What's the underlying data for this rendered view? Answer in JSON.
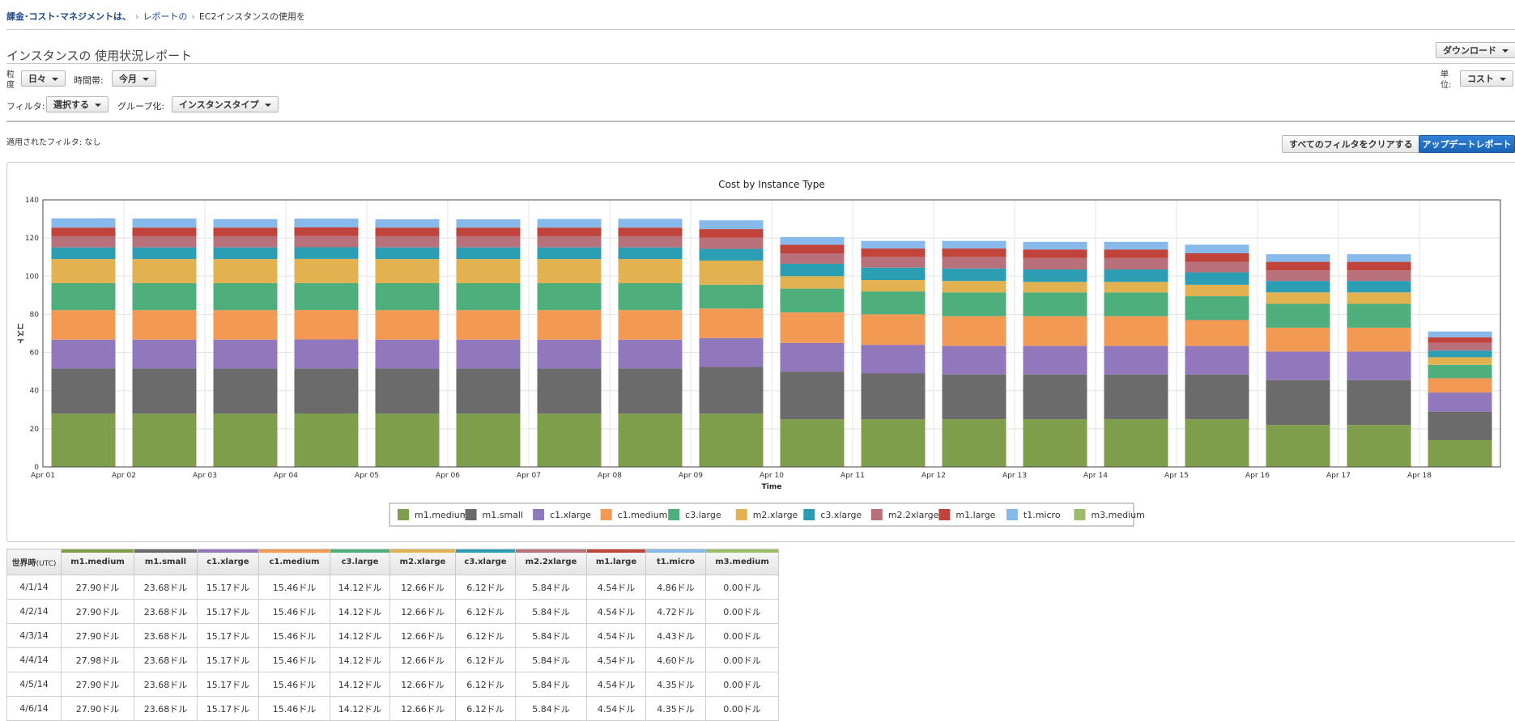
{
  "breadcrumb": {
    "root": "課金･コスト･マネジメントは、",
    "link": "レポートの",
    "current": "EC2インスタンスの使用を"
  },
  "page_title": "インスタンスの 使用状況レポート",
  "download_label": "ダウンロード",
  "filters": {
    "granularity_label": "粒度",
    "granularity_value": "日々",
    "period_label": "時間帯:",
    "period_value": "今月",
    "unit_label": "単位:",
    "unit_value": "コスト",
    "filter_label": "フィルタ:",
    "filter_value": "選択する",
    "group_label": "グループ化:",
    "group_value": "インスタンスタイプ",
    "applied": "適用されたフィルタ: なし"
  },
  "clear_filters_label": "すべてのフィルタをクリアする",
  "update_report_label": "アップデートレポート",
  "colors": {
    "m1.medium": "#7f9e4c",
    "m1.small": "#6b6b6b",
    "c1.xlarge": "#9178bd",
    "c1.medium": "#f29a54",
    "c3.large": "#4faf7c",
    "m2.xlarge": "#e2b250",
    "c3.xlarge": "#2b9eb3",
    "m2.2xlarge": "#b8707a",
    "m1.large": "#c0443b",
    "t1.micro": "#87b9ea",
    "m3.medium": "#9bbd6b"
  },
  "chart_data": {
    "type": "bar",
    "stacked": true,
    "title": "Cost by Instance Type",
    "xlabel": "Time",
    "ylabel": "コスト",
    "ylim": [
      0,
      140
    ],
    "yticks": [
      0,
      20,
      40,
      60,
      80,
      100,
      120,
      140
    ],
    "grid": true,
    "legend_position": "bottom",
    "categories": [
      "Apr 01",
      "Apr 02",
      "Apr 03",
      "Apr 04",
      "Apr 05",
      "Apr 06",
      "Apr 07",
      "Apr 08",
      "Apr 09",
      "Apr 10",
      "Apr 11",
      "Apr 12",
      "Apr 13",
      "Apr 14",
      "Apr 15",
      "Apr 16",
      "Apr 17",
      "Apr 18"
    ],
    "series": [
      {
        "name": "m1.medium",
        "values": [
          27.9,
          27.9,
          27.9,
          27.98,
          27.9,
          27.9,
          27.9,
          27.9,
          27.9,
          25.0,
          25.0,
          25.0,
          25.0,
          25.0,
          25.0,
          22.0,
          22.0,
          14.0
        ]
      },
      {
        "name": "m1.small",
        "values": [
          23.68,
          23.68,
          23.68,
          23.68,
          23.68,
          23.68,
          23.68,
          23.68,
          24.5,
          25.0,
          24.0,
          23.5,
          23.5,
          23.5,
          23.5,
          23.5,
          23.5,
          15.0
        ]
      },
      {
        "name": "c1.xlarge",
        "values": [
          15.17,
          15.17,
          15.17,
          15.17,
          15.17,
          15.17,
          15.17,
          15.17,
          15.17,
          15.0,
          15.0,
          15.0,
          15.0,
          15.0,
          15.0,
          15.0,
          15.0,
          10.0
        ]
      },
      {
        "name": "c1.medium",
        "values": [
          15.46,
          15.46,
          15.46,
          15.46,
          15.46,
          15.46,
          15.46,
          15.46,
          15.46,
          16.0,
          16.0,
          15.5,
          15.5,
          15.5,
          13.5,
          12.5,
          12.5,
          7.5
        ]
      },
      {
        "name": "c3.large",
        "values": [
          14.12,
          14.12,
          14.12,
          14.12,
          14.12,
          14.12,
          14.12,
          14.12,
          12.5,
          12.5,
          12.0,
          12.5,
          12.5,
          12.5,
          12.5,
          12.5,
          12.5,
          7.0
        ]
      },
      {
        "name": "m2.xlarge",
        "values": [
          12.66,
          12.66,
          12.66,
          12.66,
          12.66,
          12.66,
          12.66,
          12.66,
          12.66,
          6.5,
          6.0,
          6.0,
          5.5,
          5.5,
          6.0,
          6.0,
          6.0,
          4.0
        ]
      },
      {
        "name": "c3.xlarge",
        "values": [
          6.12,
          6.12,
          6.12,
          6.12,
          6.12,
          6.12,
          6.12,
          6.12,
          6.12,
          6.5,
          6.5,
          6.5,
          6.5,
          6.5,
          6.5,
          6.0,
          6.0,
          3.5
        ]
      },
      {
        "name": "m2.2xlarge",
        "values": [
          5.84,
          5.84,
          5.84,
          5.84,
          5.84,
          5.84,
          5.84,
          5.84,
          5.84,
          5.5,
          5.5,
          6.0,
          6.0,
          6.0,
          5.5,
          5.5,
          5.5,
          4.0
        ]
      },
      {
        "name": "m1.large",
        "values": [
          4.54,
          4.54,
          4.54,
          4.54,
          4.54,
          4.54,
          4.54,
          4.54,
          4.54,
          4.5,
          4.5,
          4.5,
          4.5,
          4.5,
          4.5,
          4.5,
          4.5,
          3.0
        ]
      },
      {
        "name": "t1.micro",
        "values": [
          4.86,
          4.72,
          4.43,
          4.6,
          4.35,
          4.35,
          4.5,
          4.6,
          4.6,
          4.0,
          4.0,
          4.0,
          4.0,
          4.0,
          4.5,
          4.0,
          4.0,
          3.0
        ]
      },
      {
        "name": "m3.medium",
        "values": [
          0,
          0,
          0,
          0,
          0,
          0,
          0,
          0,
          0,
          0,
          0,
          0,
          0,
          0,
          0,
          0,
          0,
          0
        ]
      }
    ]
  },
  "table": {
    "date_header": "世界時",
    "date_header_sub": "(UTC)",
    "columns": [
      "m1.medium",
      "m1.small",
      "c1.xlarge",
      "c1.medium",
      "c3.large",
      "m2.xlarge",
      "c3.xlarge",
      "m2.2xlarge",
      "m1.large",
      "t1.micro",
      "m3.medium"
    ],
    "rows": [
      {
        "date": "4/1/14",
        "values": [
          "27.90ドル",
          "23.68ドル",
          "15.17ドル",
          "15.46ドル",
          "14.12ドル",
          "12.66ドル",
          "6.12ドル",
          "5.84ドル",
          "4.54ドル",
          "4.86ドル",
          "0.00ドル"
        ]
      },
      {
        "date": "4/2/14",
        "values": [
          "27.90ドル",
          "23.68ドル",
          "15.17ドル",
          "15.46ドル",
          "14.12ドル",
          "12.66ドル",
          "6.12ドル",
          "5.84ドル",
          "4.54ドル",
          "4.72ドル",
          "0.00ドル"
        ]
      },
      {
        "date": "4/3/14",
        "values": [
          "27.90ドル",
          "23.68ドル",
          "15.17ドル",
          "15.46ドル",
          "14.12ドル",
          "12.66ドル",
          "6.12ドル",
          "5.84ドル",
          "4.54ドル",
          "4.43ドル",
          "0.00ドル"
        ]
      },
      {
        "date": "4/4/14",
        "values": [
          "27.98ドル",
          "23.68ドル",
          "15.17ドル",
          "15.46ドル",
          "14.12ドル",
          "12.66ドル",
          "6.12ドル",
          "5.84ドル",
          "4.54ドル",
          "4.60ドル",
          "0.00ドル"
        ]
      },
      {
        "date": "4/5/14",
        "values": [
          "27.90ドル",
          "23.68ドル",
          "15.17ドル",
          "15.46ドル",
          "14.12ドル",
          "12.66ドル",
          "6.12ドル",
          "5.84ドル",
          "4.54ドル",
          "4.35ドル",
          "0.00ドル"
        ]
      },
      {
        "date": "4/6/14",
        "values": [
          "27.90ドル",
          "23.68ドル",
          "15.17ドル",
          "15.46ドル",
          "14.12ドル",
          "12.66ドル",
          "6.12ドル",
          "5.84ドル",
          "4.54ドル",
          "4.35ドル",
          "0.00ドル"
        ]
      }
    ]
  }
}
